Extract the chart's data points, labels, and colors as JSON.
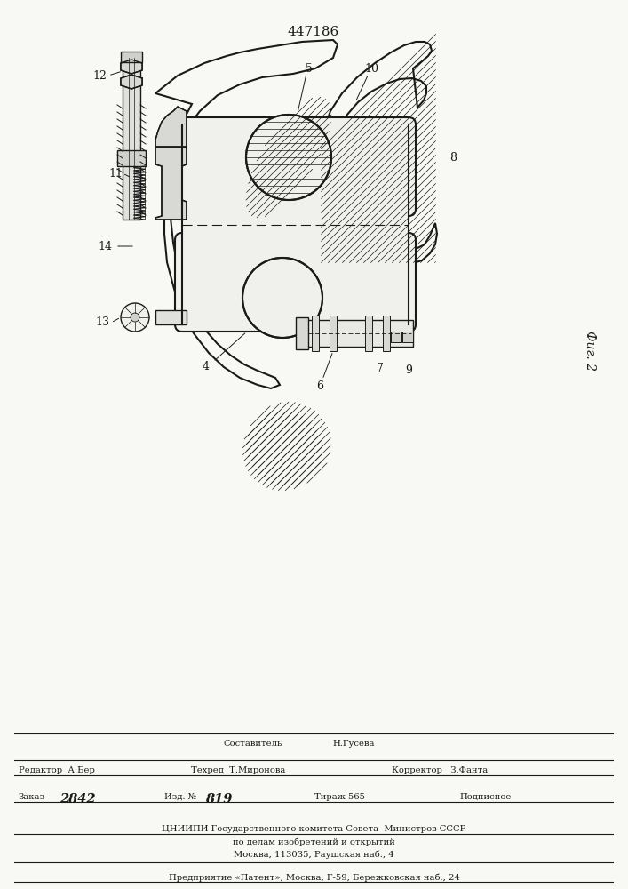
{
  "patent_number": "447186",
  "fig_label": "Фиг. 2",
  "bg_color": "#f8f8f5",
  "footer": {
    "row1_c": "Составитель",
    "row1_r": "Н.Гусева",
    "row2_l": "Редактор  А.Бер",
    "row2_c": "Техред  Т.Миронова",
    "row2_r": "Корректор   З.Фанта",
    "row3_l": "Заказ",
    "row3_ln": "2842",
    "row3_c": "Изд. №",
    "row3_cn": "819",
    "row3_r1": "Тираж 565",
    "row3_r2": "Подписное",
    "row4": "ЦНИИПИ Государственного комитета Совета  Министров СССР",
    "row5": "по делам изобретений и открытий",
    "row6": "Москва, 113035, Раушская наб., 4",
    "row7": "Предприятие «Патент», Москва, Г-59, Бережковская наб., 24"
  }
}
